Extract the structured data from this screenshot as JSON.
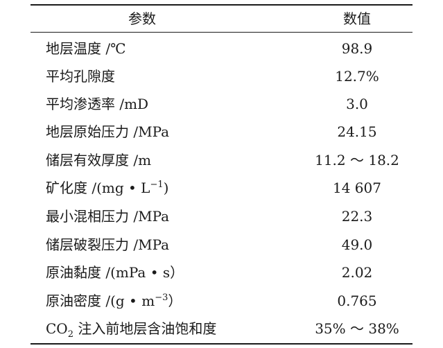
{
  "table": {
    "headers": {
      "param": "参数",
      "value": "数值"
    },
    "rows": [
      {
        "param": "地层温度 /℃",
        "value": "98.9"
      },
      {
        "param": "平均孔隙度",
        "value": "12.7%"
      },
      {
        "param": "平均渗透率 /mD",
        "value": "3.0"
      },
      {
        "param": "地层原始压力 /MPa",
        "value": "24.15"
      },
      {
        "param": "储层有效厚度 /m",
        "value": "11.2 ～ 18.2"
      },
      {
        "param_main": "矿化度 /(mg • L",
        "param_sup": "−1",
        "param_tail": ")",
        "value": "14 607"
      },
      {
        "param": "最小混相压力 /MPa",
        "value": "22.3"
      },
      {
        "param": "储层破裂压力 /MPa",
        "value": "49.0"
      },
      {
        "param": "原油黏度 /(mPa • s）",
        "value": "2.02"
      },
      {
        "param_main": "原油密度 /(g • m",
        "param_sup": "−3",
        "param_tail": "）",
        "value": "0.765"
      },
      {
        "param_main": "CO",
        "param_sub": "2",
        "param_tail": " 注入前地层含油饱和度",
        "value": "35% ～ 38%"
      }
    ]
  }
}
